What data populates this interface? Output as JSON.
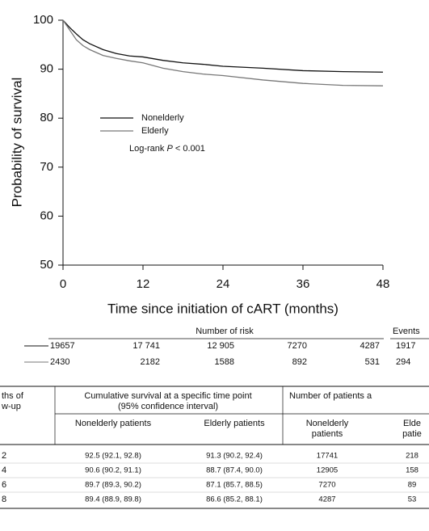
{
  "chart_data": {
    "type": "line",
    "x_label": "Time since initiation of cART (months)",
    "y_label": "Probability of survival",
    "xlim": [
      0,
      48
    ],
    "xticks": [
      0,
      12,
      24,
      36,
      48
    ],
    "ylim": [
      50,
      100
    ],
    "yticks": [
      50,
      60,
      70,
      80,
      90,
      100
    ],
    "x": [
      0,
      1,
      2,
      3,
      4,
      6,
      8,
      10,
      12,
      15,
      18,
      21,
      24,
      30,
      36,
      42,
      48
    ],
    "series": [
      {
        "name": "Nonelderly",
        "color": "#111111",
        "values": [
          100,
          98.5,
          97.2,
          96.0,
          95.2,
          94.0,
          93.2,
          92.7,
          92.5,
          91.8,
          91.3,
          91.0,
          90.6,
          90.2,
          89.7,
          89.5,
          89.4
        ]
      },
      {
        "name": "Elderly",
        "color": "#777777",
        "values": [
          100,
          98.0,
          96.0,
          94.8,
          94.0,
          92.8,
          92.2,
          91.7,
          91.3,
          90.2,
          89.5,
          89.0,
          88.7,
          87.8,
          87.1,
          86.7,
          86.6
        ]
      }
    ],
    "annotation": {
      "prefix": "Log-rank",
      "italic": "P",
      "suffix": "< 0.001"
    }
  },
  "risk_table": {
    "title": "Number of risk",
    "events_title": "Events",
    "rows": [
      {
        "counts": [
          "19657",
          "17 741",
          "12 905",
          "7270",
          "4287"
        ],
        "events": "1917"
      },
      {
        "counts": [
          "2430",
          "2182",
          "1588",
          "892",
          "531"
        ],
        "events": "294"
      }
    ]
  },
  "table": {
    "header": {
      "col0": [
        "ths of",
        "w-up"
      ],
      "group1": [
        "Cumulative survival at a specific time point",
        "(95% confidence interval)"
      ],
      "group2": [
        "Number of patients a"
      ],
      "sub": [
        [
          "Nonelderly patients"
        ],
        [
          "Elderly patients"
        ],
        [
          "Nonelderly",
          "patients"
        ],
        [
          "Elde",
          "patie"
        ]
      ]
    },
    "rows": [
      [
        "2",
        "92.5 (92.1, 92.8)",
        "91.3 (90.2, 92.4)",
        "17741",
        "218"
      ],
      [
        "4",
        "90.6 (90.2, 91.1)",
        "88.7 (87.4, 90.0)",
        "12905",
        "158"
      ],
      [
        "6",
        "89.7 (89.3, 90.2)",
        "87.1 (85.7, 88.5)",
        "7270",
        "89"
      ],
      [
        "8",
        "89.4 (88.9, 89.8)",
        "86.6 (85.2, 88.1)",
        "4287",
        "53"
      ]
    ]
  }
}
